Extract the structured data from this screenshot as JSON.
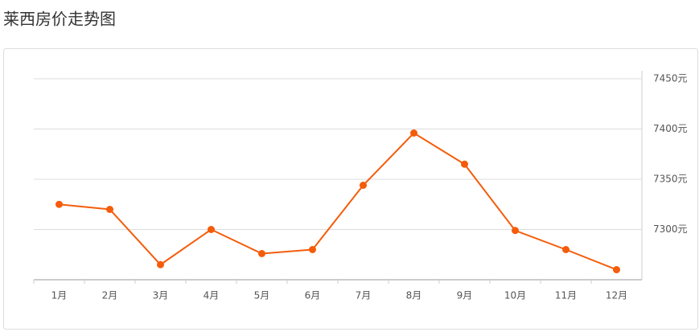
{
  "chart_data": {
    "type": "line",
    "title": "莱西房价走势图",
    "categories": [
      "1月",
      "2月",
      "3月",
      "4月",
      "5月",
      "6月",
      "7月",
      "8月",
      "9月",
      "10月",
      "11月",
      "12月"
    ],
    "values": [
      7325,
      7320,
      7265,
      7300,
      7276,
      7280,
      7344,
      7396,
      7365,
      7299,
      7280,
      7260
    ],
    "color": "#f45c0a",
    "ylim": [
      7250,
      7450
    ],
    "yticks": [
      {
        "value": 7300,
        "label": "7300元"
      },
      {
        "value": 7350,
        "label": "7350元"
      },
      {
        "value": 7400,
        "label": "7400元"
      },
      {
        "value": 7450,
        "label": "7450元"
      }
    ],
    "grid": true
  }
}
